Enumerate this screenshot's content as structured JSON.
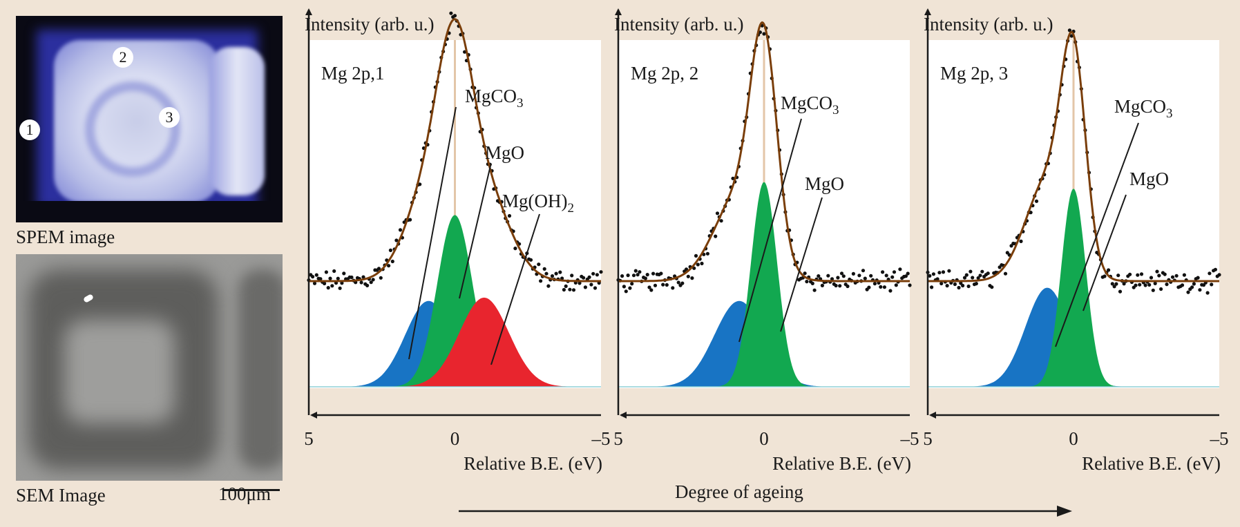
{
  "left_panel": {
    "spem_caption": "SPEM image",
    "sem_caption": "SEM Image",
    "scale_label": "100μm",
    "markers": [
      "1",
      "2",
      "3"
    ]
  },
  "bottom_axis_caption": "Degree of ageing",
  "colors": {
    "background": "#f0e4d6",
    "fit": "#7a3e0a",
    "data": "#111111",
    "mgo": "#12a850",
    "mgco3": "#1874c4",
    "mgoh2": "#e8252e",
    "zero_line": "#e3c6a8"
  },
  "chart_data": [
    {
      "type": "line",
      "title": "Mg 2p,1",
      "ylabel": "Intensity (arb. u.)",
      "xlabel": "Relative B.E. (eV)",
      "xlim": [
        5,
        -5
      ],
      "x_ticks": [
        "5",
        "0",
        "–5"
      ],
      "ylim": [
        0,
        1.05
      ],
      "baseline": 0.32,
      "noise": 0.025,
      "components": [
        {
          "name": "MgO",
          "center": 0.0,
          "sigma": 0.6,
          "amp": 0.52,
          "color": "#12a850",
          "order": 2
        },
        {
          "name": "MgCO3",
          "center": 0.9,
          "sigma": 0.8,
          "amp": 0.26,
          "color": "#1874c4",
          "order": 1
        },
        {
          "name": "Mg(OH)2",
          "center": -1.0,
          "sigma": 0.85,
          "amp": 0.27,
          "color": "#e8252e",
          "order": 3
        }
      ],
      "labels": [
        {
          "text": "MgCO",
          "sub": "3"
        },
        {
          "text": "MgO",
          "sub": ""
        },
        {
          "text": "Mg(OH)",
          "sub": "2"
        }
      ]
    },
    {
      "type": "line",
      "title": "Mg 2p, 2",
      "ylabel": "Intensity (arb. u.)",
      "xlabel": "Relative B.E. (eV)",
      "xlim": [
        5,
        -5
      ],
      "x_ticks": [
        "5",
        "0",
        "–5"
      ],
      "ylim": [
        0,
        1.05
      ],
      "baseline": 0.32,
      "noise": 0.025,
      "components": [
        {
          "name": "MgO",
          "center": 0.0,
          "sigma": 0.45,
          "amp": 0.62,
          "color": "#12a850",
          "order": 2
        },
        {
          "name": "MgCO3",
          "center": 0.85,
          "sigma": 0.85,
          "amp": 0.26,
          "color": "#1874c4",
          "order": 1
        }
      ],
      "labels": [
        {
          "text": "MgCO",
          "sub": "3"
        },
        {
          "text": "MgO",
          "sub": ""
        }
      ]
    },
    {
      "type": "line",
      "title": "Mg 2p, 3",
      "ylabel": "Intensity (arb. u.)",
      "xlabel": "Relative B.E. (eV)",
      "xlim": [
        5,
        -5
      ],
      "x_ticks": [
        "5",
        "0",
        "–5"
      ],
      "ylim": [
        0,
        1.05
      ],
      "baseline": 0.32,
      "noise": 0.025,
      "components": [
        {
          "name": "MgO",
          "center": 0.0,
          "sigma": 0.42,
          "amp": 0.6,
          "color": "#12a850",
          "order": 2
        },
        {
          "name": "MgCO3",
          "center": 0.9,
          "sigma": 0.75,
          "amp": 0.3,
          "color": "#1874c4",
          "order": 1
        }
      ],
      "labels": [
        {
          "text": "MgCO",
          "sub": "3"
        },
        {
          "text": "MgO",
          "sub": ""
        }
      ]
    }
  ]
}
